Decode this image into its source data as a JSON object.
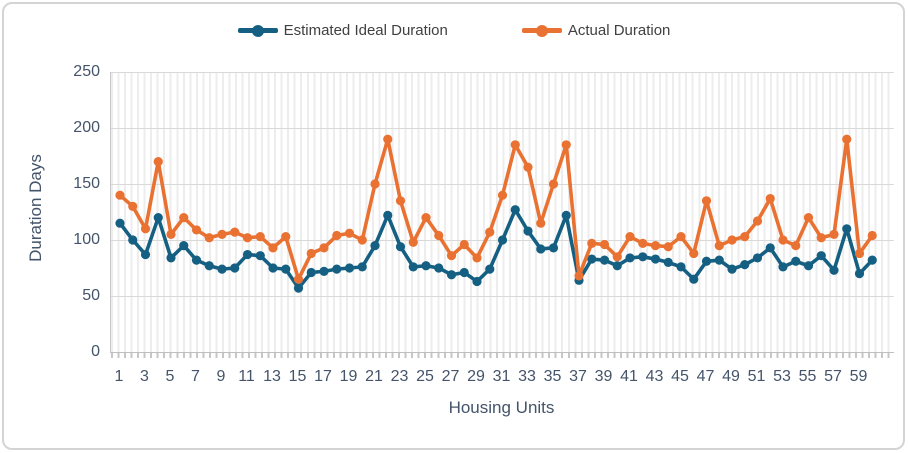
{
  "chart": {
    "legend": [
      {
        "label": "Estimated Ideal Duration",
        "color": "#156082"
      },
      {
        "label": "Actual Duration",
        "color": "#E97132"
      }
    ],
    "y_axis": {
      "title": "Duration Days",
      "ticks": [
        0,
        50,
        100,
        150,
        200,
        250
      ]
    },
    "x_axis": {
      "title": "Housing Units",
      "tick_labels": [
        "1",
        "3",
        "5",
        "7",
        "9",
        "11",
        "13",
        "15",
        "17",
        "19",
        "21",
        "23",
        "25",
        "27",
        "29",
        "31",
        "33",
        "35",
        "37",
        "39",
        "41",
        "43",
        "45",
        "47",
        "49",
        "51",
        "53",
        "55",
        "57",
        "59"
      ]
    }
  },
  "chart_data": {
    "type": "line",
    "title": "",
    "xlabel": "Housing Units",
    "ylabel": "Duration Days",
    "ylim": [
      0,
      250
    ],
    "grid": true,
    "legend_position": "top",
    "x": [
      1,
      2,
      3,
      4,
      5,
      6,
      7,
      8,
      9,
      10,
      11,
      12,
      13,
      14,
      15,
      16,
      17,
      18,
      19,
      20,
      21,
      22,
      23,
      24,
      25,
      26,
      27,
      28,
      29,
      30,
      31,
      32,
      33,
      34,
      35,
      36,
      37,
      38,
      39,
      40,
      41,
      42,
      43,
      44,
      45,
      46,
      47,
      48,
      49,
      50,
      51,
      52,
      53,
      54,
      55,
      56,
      57,
      58,
      59,
      60
    ],
    "series": [
      {
        "name": "Estimated Ideal Duration",
        "color": "#156082",
        "values": [
          115,
          100,
          87,
          120,
          84,
          95,
          82,
          77,
          74,
          75,
          87,
          86,
          75,
          74,
          57,
          71,
          72,
          74,
          75,
          76,
          95,
          122,
          94,
          76,
          77,
          75,
          69,
          71,
          63,
          74,
          100,
          127,
          108,
          92,
          93,
          122,
          64,
          83,
          82,
          77,
          84,
          85,
          83,
          80,
          76,
          65,
          81,
          82,
          74,
          78,
          84,
          93,
          76,
          81,
          77,
          86,
          73,
          110,
          70,
          82
        ]
      },
      {
        "name": "Actual Duration",
        "color": "#E97132",
        "values": [
          140,
          130,
          110,
          170,
          105,
          120,
          109,
          102,
          105,
          107,
          102,
          103,
          93,
          103,
          65,
          88,
          93,
          104,
          106,
          100,
          150,
          190,
          135,
          98,
          120,
          104,
          86,
          96,
          84,
          107,
          140,
          185,
          165,
          115,
          150,
          185,
          68,
          97,
          96,
          85,
          103,
          97,
          95,
          94,
          103,
          88,
          135,
          95,
          100,
          103,
          117,
          137,
          100,
          95,
          120,
          102,
          105,
          190,
          88,
          104
        ]
      }
    ]
  }
}
